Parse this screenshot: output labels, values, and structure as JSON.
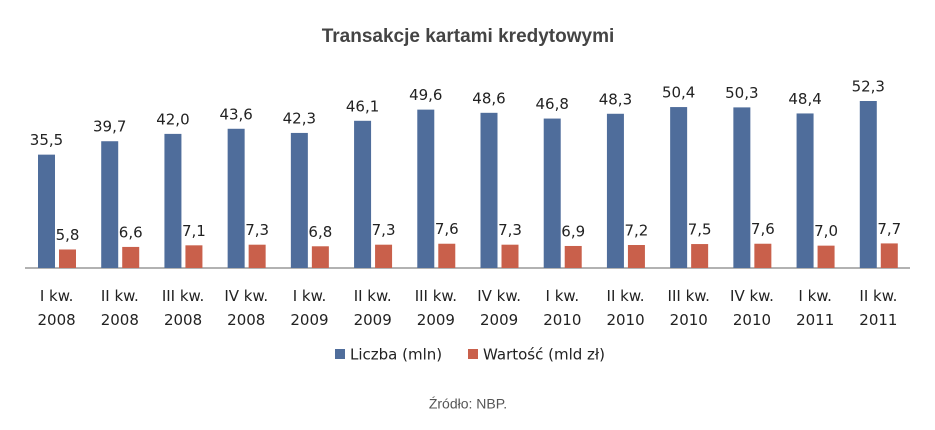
{
  "chart_data": {
    "type": "bar",
    "title": "Transakcje kartami kredytowymi",
    "categories": [
      [
        "I kw.",
        "2008"
      ],
      [
        "II kw.",
        "2008"
      ],
      [
        "III kw.",
        "2008"
      ],
      [
        "IV kw.",
        "2008"
      ],
      [
        "I kw.",
        "2009"
      ],
      [
        "II kw.",
        "2009"
      ],
      [
        "III kw.",
        "2009"
      ],
      [
        "IV kw.",
        "2009"
      ],
      [
        "I kw.",
        "2010"
      ],
      [
        "II kw.",
        "2010"
      ],
      [
        "III kw.",
        "2010"
      ],
      [
        "IV kw.",
        "2010"
      ],
      [
        "I kw.",
        "2011"
      ],
      [
        "II kw.",
        "2011"
      ]
    ],
    "series": [
      {
        "name": "Liczba (mln)",
        "color": "#4f6d9b",
        "values": [
          35.5,
          39.7,
          42.0,
          43.6,
          42.3,
          46.1,
          49.6,
          48.6,
          46.8,
          48.3,
          50.4,
          50.3,
          48.4,
          52.3
        ],
        "value_labels": [
          "35,5",
          "39,7",
          "42,0",
          "43,6",
          "42,3",
          "46,1",
          "49,6",
          "48,6",
          "46,8",
          "48,3",
          "50,4",
          "50,3",
          "48,4",
          "52,3"
        ]
      },
      {
        "name": "Wartość (mld zł)",
        "color": "#c9604b",
        "values": [
          5.8,
          6.6,
          7.1,
          7.3,
          6.8,
          7.3,
          7.6,
          7.3,
          6.9,
          7.2,
          7.5,
          7.6,
          7.0,
          7.7
        ],
        "value_labels": [
          "5,8",
          "6,6",
          "7,1",
          "7,3",
          "6,8",
          "7,3",
          "7,6",
          "7,3",
          "6,9",
          "7,2",
          "7,5",
          "7,6",
          "7,0",
          "7,7"
        ]
      }
    ],
    "source": "Źródło: NBP."
  }
}
